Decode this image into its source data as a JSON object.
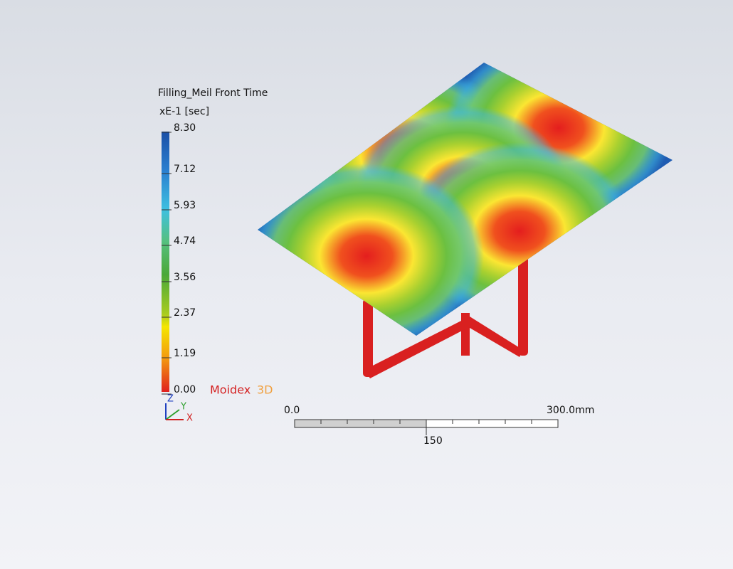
{
  "legend": {
    "title": "Filling_Meil Front Time",
    "unit": "xE-1 [sec]",
    "ticks": [
      "8.30",
      "7.12",
      "5.93",
      "4.74",
      "3.56",
      "2.37",
      "1.19",
      "0.00"
    ]
  },
  "brand": {
    "name": "Moidex",
    "suffix": "3D"
  },
  "axes": {
    "z": "Z",
    "y": "Y",
    "x": "X"
  },
  "scale_bar": {
    "start": "0.0",
    "end": "300.0mm",
    "middle": "150"
  }
}
